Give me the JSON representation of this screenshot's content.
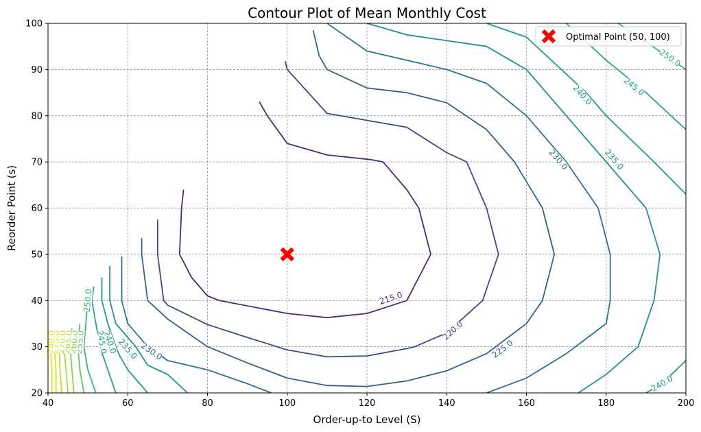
{
  "chart_data": {
    "type": "contour",
    "title": "Contour Plot of Mean Monthly Cost",
    "xlabel": "Order-up-to Level (S)",
    "ylabel": "Reorder Point (s)",
    "xlim": [
      40,
      200
    ],
    "ylim": [
      20,
      100
    ],
    "xticks": [
      40,
      60,
      80,
      100,
      120,
      140,
      160,
      180,
      200
    ],
    "yticks": [
      20,
      30,
      40,
      50,
      60,
      70,
      80,
      90,
      100
    ],
    "grid": true,
    "grid_style": "dashed",
    "legend_position": "top-right",
    "legend": [
      {
        "label": "Optimal Point (50, 100)",
        "marker": "X",
        "color": "#ff0000"
      }
    ],
    "optimal_point": {
      "x": 100,
      "y": 50
    },
    "contours": [
      {
        "level": 215,
        "label": "215.0",
        "color": "#472c7a",
        "points": [
          [
            74,
            64
          ],
          [
            73.5,
            60
          ],
          [
            73,
            50
          ],
          [
            76,
            45
          ],
          [
            80,
            41
          ],
          [
            83,
            40
          ],
          [
            100,
            37.2
          ],
          [
            110,
            36.3
          ],
          [
            120,
            37.2
          ],
          [
            130,
            40
          ],
          [
            136,
            50
          ],
          [
            133,
            60
          ],
          [
            130,
            64
          ],
          [
            124,
            70
          ],
          [
            121,
            70.5
          ],
          [
            110,
            71.5
          ],
          [
            100,
            74
          ],
          [
            95,
            80
          ],
          [
            93,
            83
          ]
        ],
        "label_at": [
          126,
          40.5
        ]
      },
      {
        "level": 220,
        "label": "220.0",
        "color": "#3e4989",
        "points": [
          [
            67.5,
            57.5
          ],
          [
            67.5,
            50
          ],
          [
            69,
            40
          ],
          [
            70,
            39
          ],
          [
            80,
            34.8
          ],
          [
            90,
            32
          ],
          [
            100,
            29.3
          ],
          [
            110,
            27.8
          ],
          [
            120,
            28
          ],
          [
            130,
            29.6
          ],
          [
            132,
            30
          ],
          [
            140,
            33
          ],
          [
            149,
            40
          ],
          [
            153,
            50
          ],
          [
            150,
            60
          ],
          [
            145,
            70
          ],
          [
            140,
            72
          ],
          [
            130,
            77.5
          ],
          [
            120,
            79
          ],
          [
            110,
            80.5
          ],
          [
            100,
            90
          ],
          [
            99.5,
            91.8
          ]
        ],
        "label_at": [
          141.5,
          33.5
        ]
      },
      {
        "level": 225,
        "label": "225.0",
        "color": "#355f8d",
        "points": [
          [
            63.5,
            53.5
          ],
          [
            63.5,
            50
          ],
          [
            65,
            40
          ],
          [
            70,
            36
          ],
          [
            80,
            30
          ],
          [
            90,
            26.5
          ],
          [
            100,
            23.2
          ],
          [
            110,
            21.6
          ],
          [
            120,
            21.4
          ],
          [
            130,
            22.6
          ],
          [
            140,
            24.8
          ],
          [
            150,
            28.5
          ],
          [
            160,
            35
          ],
          [
            164,
            40
          ],
          [
            167,
            50
          ],
          [
            164,
            60
          ],
          [
            157,
            70
          ],
          [
            150,
            77
          ],
          [
            140,
            82.8
          ],
          [
            130,
            85
          ],
          [
            120,
            86
          ],
          [
            110,
            90
          ],
          [
            108,
            93
          ],
          [
            106.5,
            98.5
          ]
        ],
        "label_at": [
          154,
          29.5
        ]
      },
      {
        "level": 230,
        "label": "230.0",
        "color": "#2c728e",
        "points": [
          [
            58.5,
            49.5
          ],
          [
            58.5,
            40
          ],
          [
            60,
            35
          ],
          [
            65,
            30
          ],
          [
            70,
            27
          ],
          [
            80,
            25
          ],
          [
            90,
            22
          ],
          [
            96,
            20
          ]
        ],
        "label_at": [
          66,
          29
        ]
      },
      {
        "level": 230,
        "label": "230.0",
        "color": "#2c728e",
        "points": [
          [
            150,
            20
          ],
          [
            160,
            23.2
          ],
          [
            170,
            28.5
          ],
          [
            180,
            35
          ],
          [
            181,
            40
          ],
          [
            181,
            50
          ],
          [
            178,
            60
          ],
          [
            170,
            70
          ],
          [
            160,
            80
          ],
          [
            150,
            87
          ],
          [
            140,
            90
          ],
          [
            120,
            94
          ],
          [
            110,
            100
          ]
        ],
        "label_at": [
          168,
          70.5
        ]
      },
      {
        "level": 235,
        "label": "235.0",
        "color": "#21918c",
        "points": [
          [
            55.5,
            47.5
          ],
          [
            55.5,
            40
          ],
          [
            57,
            35
          ],
          [
            60,
            32
          ],
          [
            62,
            30
          ],
          [
            65,
            26
          ],
          [
            70,
            24
          ],
          [
            75,
            20
          ]
        ],
        "label_at": [
          60,
          29.5
        ]
      },
      {
        "level": 235,
        "label": "235.0",
        "color": "#21918c",
        "points": [
          [
            173,
            20
          ],
          [
            180,
            24
          ],
          [
            188,
            30
          ],
          [
            192,
            40
          ],
          [
            193.5,
            50
          ],
          [
            190,
            60
          ],
          [
            180,
            70
          ],
          [
            170,
            80
          ],
          [
            160,
            90
          ],
          [
            150,
            95
          ],
          [
            130,
            97.5
          ],
          [
            120,
            100
          ]
        ],
        "label_at": [
          182,
          70.5
        ]
      },
      {
        "level": 240,
        "label": "240.0",
        "color": "#1f9e89",
        "points": [
          [
            53.5,
            45
          ],
          [
            53.5,
            40
          ],
          [
            55,
            35
          ],
          [
            57,
            30
          ],
          [
            58,
            28
          ],
          [
            60,
            25
          ],
          [
            63,
            22
          ],
          [
            65,
            20
          ]
        ],
        "label_at": [
          55.5,
          31
        ]
      },
      {
        "level": 240,
        "label": "240.0",
        "color": "#1f9e89",
        "points": [
          [
            200,
            27
          ],
          [
            194,
            22
          ],
          [
            190,
            20
          ]
        ],
        "label_at": [
          194,
          22
        ]
      },
      {
        "level": 240,
        "label": "240.0",
        "color": "#1f9e89",
        "points": [
          [
            200,
            63
          ],
          [
            192,
            70
          ],
          [
            180,
            80
          ],
          [
            175,
            85
          ],
          [
            160,
            97
          ],
          [
            150,
            100
          ]
        ],
        "label_at": [
          174,
          84.5
        ]
      },
      {
        "level": 245,
        "label": "245.0",
        "color": "#22a884",
        "points": [
          [
            51.5,
            43
          ],
          [
            51,
            40
          ],
          [
            52,
            35
          ],
          [
            53,
            30
          ],
          [
            55,
            25
          ],
          [
            57,
            20
          ]
        ],
        "label_at": [
          53.5,
          31
        ]
      },
      {
        "level": 245,
        "label": "245.0",
        "color": "#22a884",
        "points": [
          [
            200,
            77
          ],
          [
            190,
            85
          ],
          [
            180,
            92
          ],
          [
            170,
            100
          ]
        ],
        "label_at": [
          187,
          86.3
        ]
      },
      {
        "level": 250,
        "label": "250.0",
        "color": "#35b779",
        "points": [
          [
            50,
            40
          ],
          [
            49.5,
            35
          ],
          [
            49,
            30
          ],
          [
            50,
            25
          ],
          [
            52,
            20
          ]
        ],
        "label_at": [
          50,
          40
        ]
      },
      {
        "level": 250,
        "label": "250.0",
        "color": "#35b779",
        "points": [
          [
            200,
            90
          ],
          [
            190,
            96
          ],
          [
            183,
            100
          ]
        ],
        "label_at": [
          196,
          92.5
        ]
      },
      {
        "level": 255,
        "label": "255.0",
        "color": "#5ec962",
        "points": [
          [
            48,
            35
          ],
          [
            47.5,
            30
          ],
          [
            48,
            25
          ],
          [
            49,
            20
          ]
        ],
        "label_at": [
          48,
          31
        ]
      },
      {
        "level": 260,
        "label": "260.0",
        "color": "#84d44b",
        "points": [
          [
            46,
            34
          ],
          [
            45.5,
            30
          ],
          [
            46,
            25
          ],
          [
            46.5,
            20
          ]
        ],
        "label_at": [
          46.5,
          31
        ]
      },
      {
        "level": 265,
        "label": "265.0",
        "color": "#a8db34",
        "points": [
          [
            44.5,
            33
          ],
          [
            44,
            30
          ],
          [
            44.5,
            25
          ],
          [
            45,
            20
          ]
        ],
        "label_at": [
          45,
          31
        ]
      },
      {
        "level": 270,
        "label": "270.0",
        "color": "#c2df23",
        "points": [
          [
            43,
            32
          ],
          [
            42.8,
            30
          ],
          [
            43,
            25
          ],
          [
            43.5,
            20
          ]
        ],
        "label_at": [
          43.5,
          31
        ]
      },
      {
        "level": 275,
        "label": "275.0",
        "color": "#d8e219",
        "points": [
          [
            41.8,
            32
          ],
          [
            41.6,
            30
          ],
          [
            42,
            25
          ],
          [
            42,
            20
          ]
        ],
        "label_at": [
          42,
          31
        ]
      },
      {
        "level": 280,
        "label": "280.0",
        "color": "#e9e51a",
        "points": [
          [
            40.8,
            32
          ],
          [
            40.6,
            30
          ],
          [
            41,
            25
          ],
          [
            41,
            20
          ]
        ],
        "label_at": [
          40.8,
          31
        ]
      }
    ]
  }
}
